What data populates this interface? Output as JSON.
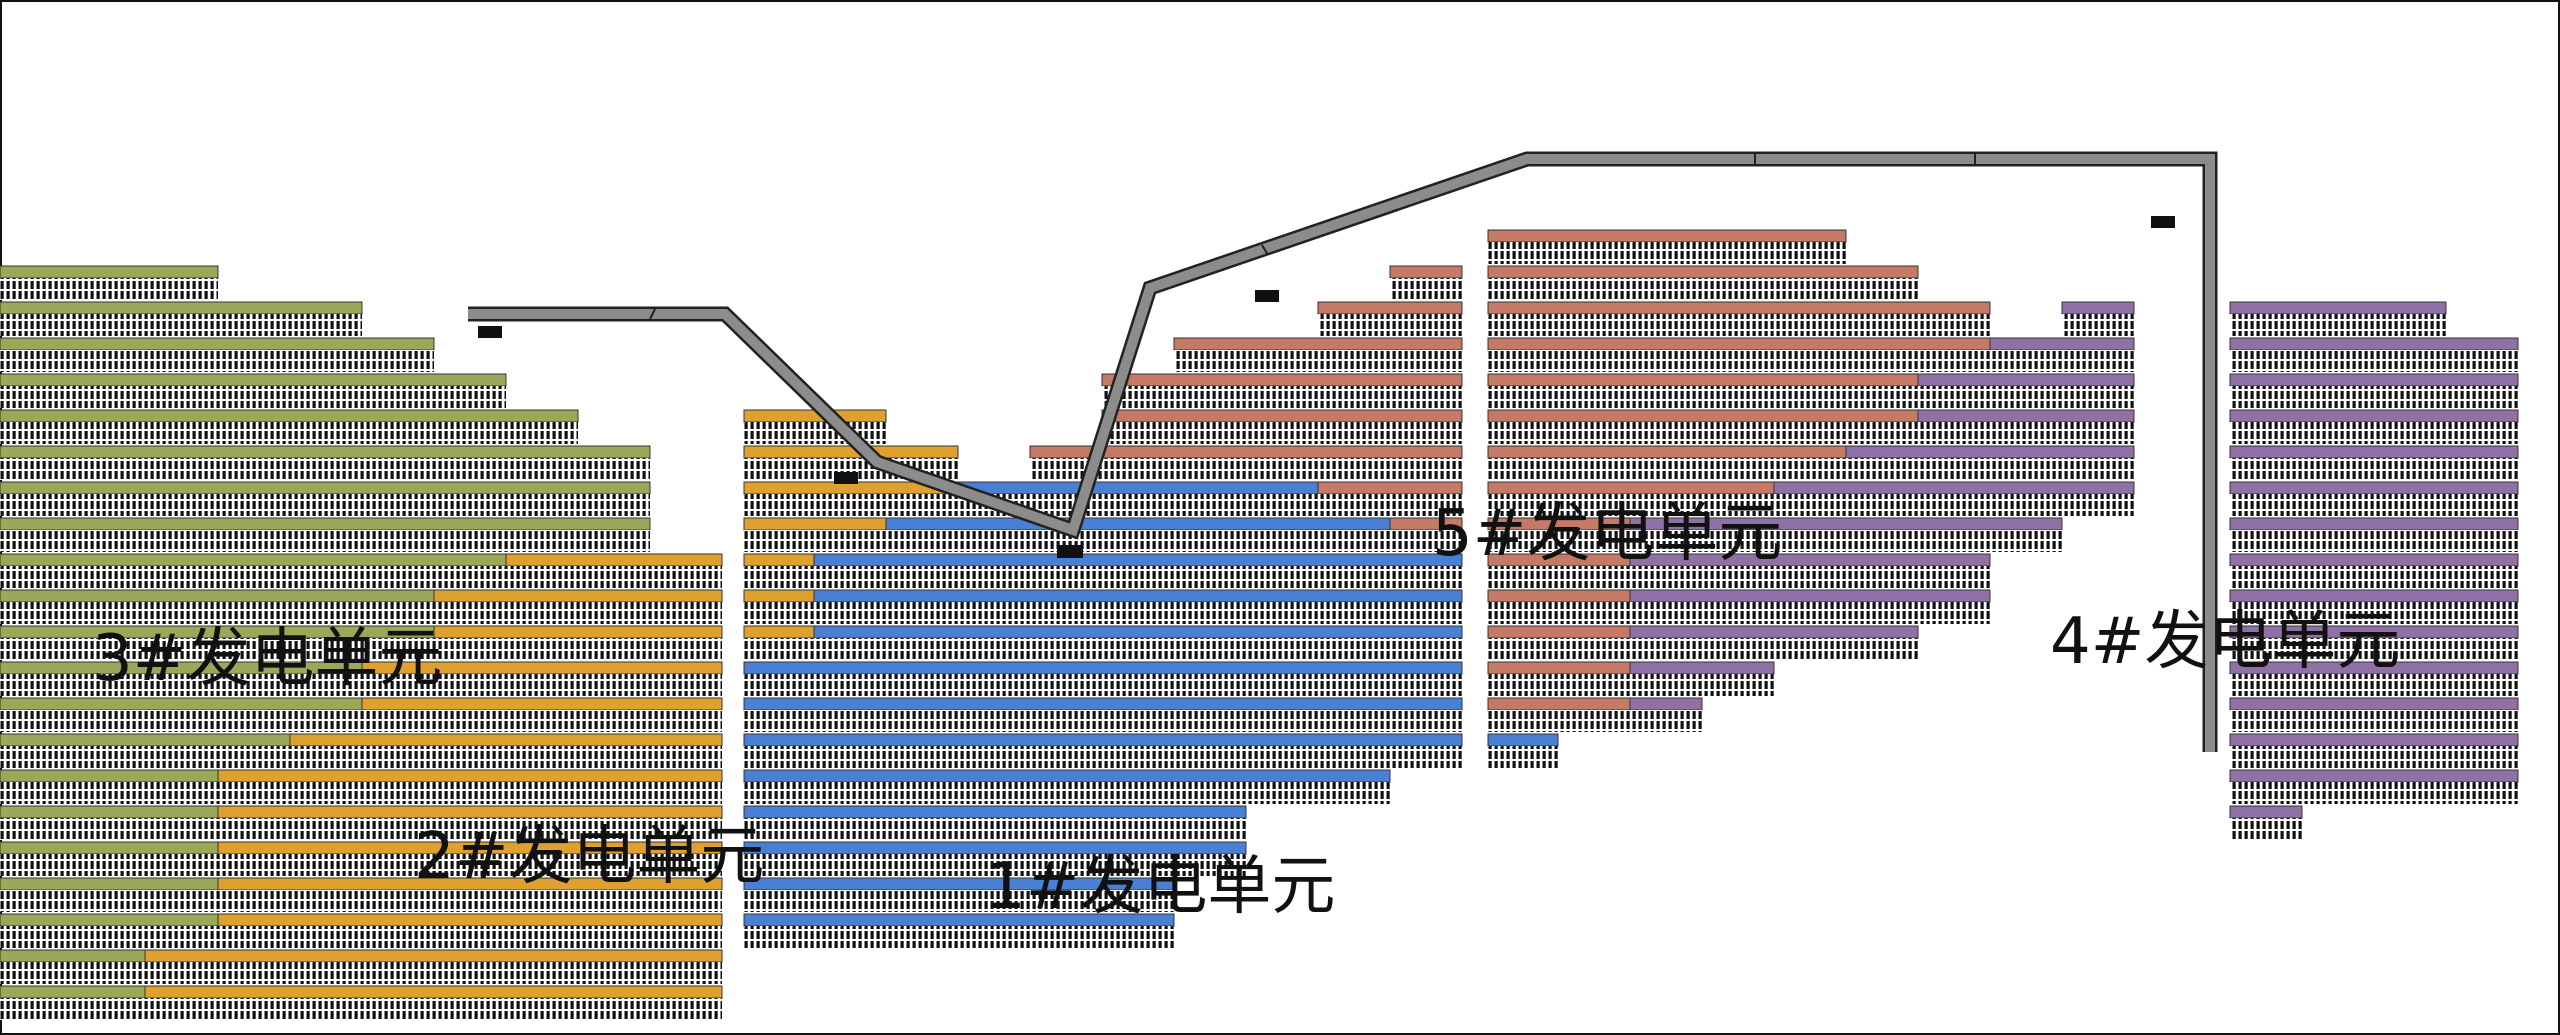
{
  "legend": {
    "present": false
  },
  "units": [
    {
      "id": "1",
      "label": "1#发电单元",
      "color": "#4a7fd6"
    },
    {
      "id": "2",
      "label": "2#发电单元",
      "color": "#e0a030"
    },
    {
      "id": "3",
      "label": "3#发电单元",
      "color": "#9aa85a"
    },
    {
      "id": "4",
      "label": "4#发电单元",
      "color": "#8f71a8"
    },
    {
      "id": "5",
      "label": "5#发电单元",
      "color": "#c47a65"
    }
  ],
  "colors": {
    "background": "#ffffff",
    "panel_cells": "#111111",
    "road_fill": "#8c8c8c",
    "road_edge": "#222222",
    "frame": "#111111"
  },
  "road": {
    "description_icon": "access-road"
  }
}
